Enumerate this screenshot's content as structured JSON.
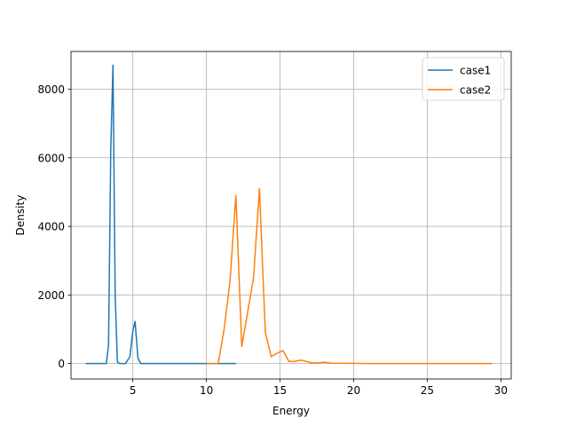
{
  "chart_data": {
    "type": "line",
    "title": "",
    "xlabel": "Energy",
    "ylabel": "Density",
    "xlim": [
      0.8,
      30.7
    ],
    "ylim": [
      -450,
      9100
    ],
    "xticks": [
      5,
      10,
      15,
      20,
      25,
      30
    ],
    "yticks": [
      0,
      2000,
      4000,
      6000,
      8000
    ],
    "grid": true,
    "legend_position": "top-right",
    "series": [
      {
        "name": "case1",
        "color": "#1f77b4",
        "x": [
          1.8,
          2.3,
          2.8,
          3.2,
          3.35,
          3.5,
          3.65,
          3.8,
          3.95,
          4.1,
          4.5,
          4.8,
          5.0,
          5.15,
          5.35,
          5.55,
          5.8,
          6.2,
          7,
          8,
          9,
          10,
          11,
          12
        ],
        "y": [
          0,
          0,
          0,
          0,
          550,
          6200,
          8700,
          2000,
          50,
          0,
          0,
          200,
          950,
          1230,
          150,
          0,
          0,
          0,
          0,
          0,
          0,
          0,
          0,
          0
        ]
      },
      {
        "name": "case2",
        "color": "#ff7f0e",
        "x": [
          10.0,
          10.4,
          10.8,
          11.2,
          11.6,
          12.0,
          12.4,
          12.8,
          13.2,
          13.6,
          14.0,
          14.4,
          14.8,
          15.2,
          15.6,
          16.0,
          16.4,
          16.8,
          17.2,
          17.6,
          18.0,
          18.5,
          19.0,
          20,
          21,
          22,
          23,
          24,
          25,
          26,
          27,
          28,
          29,
          29.4
        ],
        "y": [
          0,
          0,
          0,
          1000,
          2400,
          4900,
          500,
          1500,
          2500,
          5100,
          900,
          200,
          300,
          380,
          60,
          60,
          100,
          60,
          15,
          20,
          40,
          10,
          5,
          5,
          0,
          0,
          0,
          0,
          0,
          0,
          0,
          0,
          0,
          0
        ]
      }
    ]
  }
}
